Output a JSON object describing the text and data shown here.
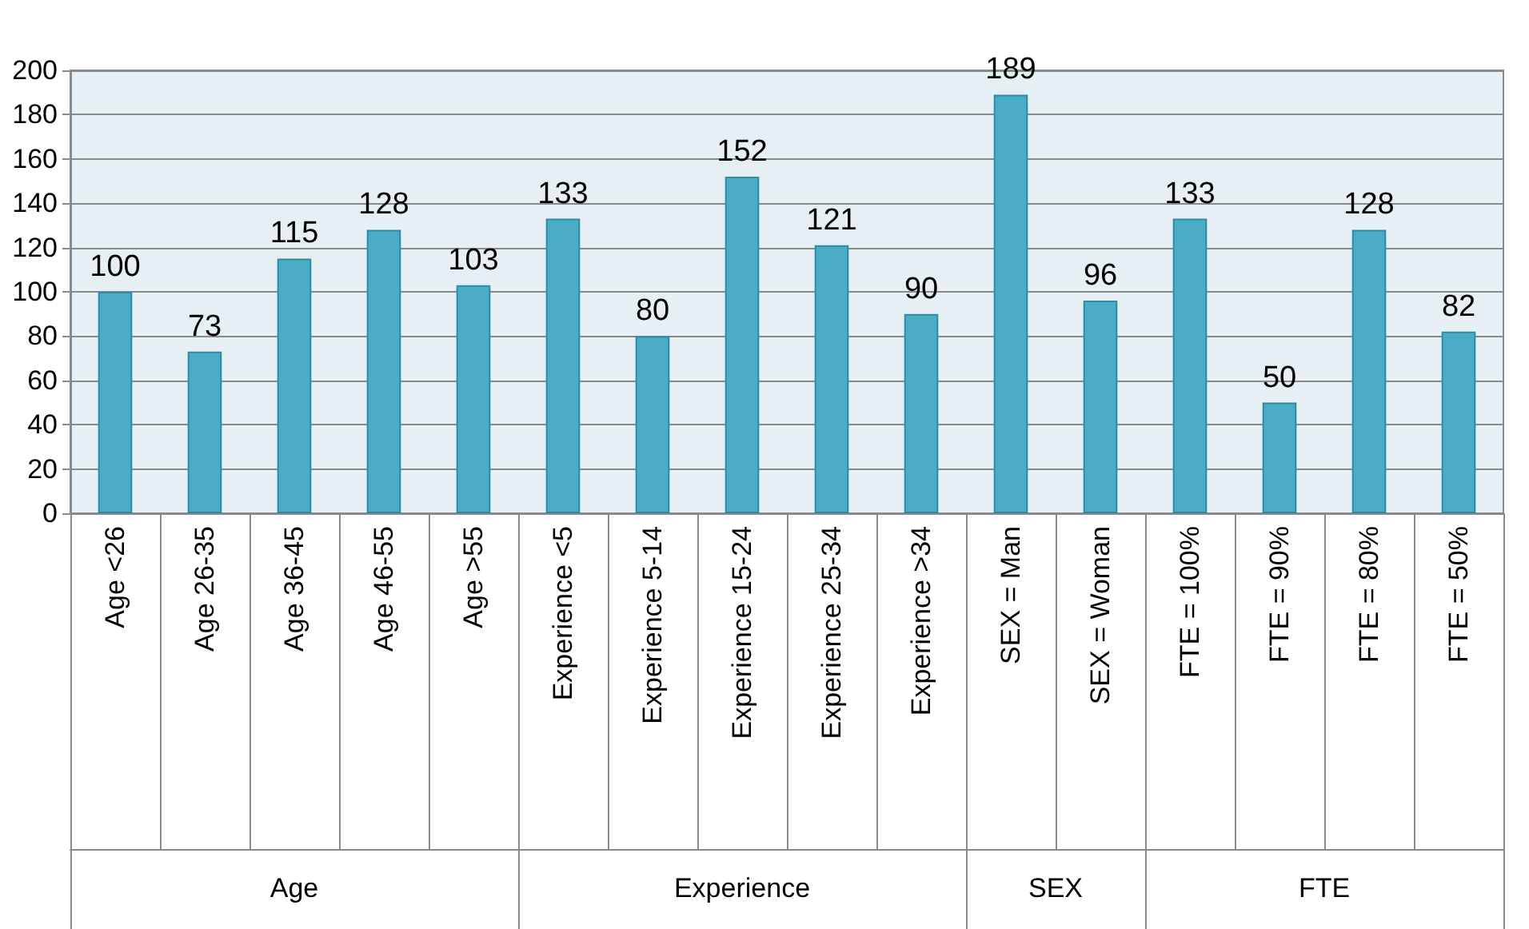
{
  "chart_data": {
    "type": "bar",
    "categories": [
      "Age <26",
      "Age 26-35",
      "Age 36-45",
      "Age 46-55",
      "Age >55",
      "Experience <5",
      "Experience 5-14",
      "Experience 15-24",
      "Experience 25-34",
      "Experience >34",
      "SEX = Man",
      "SEX = Woman",
      "FTE = 100%",
      "FTE = 90%",
      "FTE = 80%",
      "FTE = 50%"
    ],
    "values": [
      100,
      73,
      115,
      128,
      103,
      133,
      80,
      152,
      121,
      90,
      189,
      96,
      133,
      50,
      128,
      82
    ],
    "color": "#4bacc6",
    "ylim": [
      0,
      200
    ],
    "yticks": [
      0,
      20,
      40,
      60,
      80,
      100,
      120,
      140,
      160,
      180,
      200
    ],
    "grid": "y",
    "data_labels": true,
    "annotations": [
      "Age",
      "Experience",
      "SEX",
      "FTE"
    ]
  }
}
